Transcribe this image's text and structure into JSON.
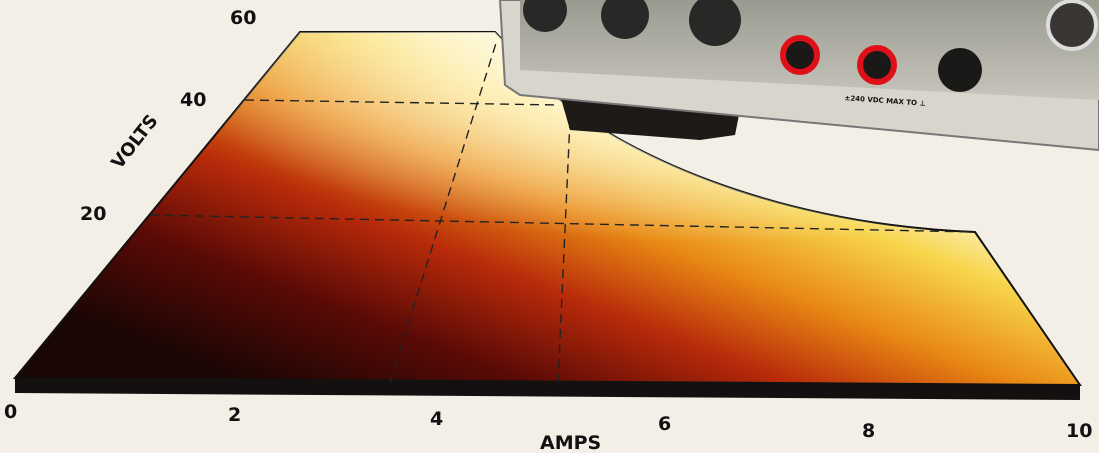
{
  "volts_axis": {
    "title": "VOLTS",
    "ticks": [
      20,
      40,
      60
    ]
  },
  "amps_axis": {
    "title": "AMPS",
    "ticks": [
      0,
      2,
      4,
      6,
      8,
      10
    ]
  },
  "instrument": {
    "panel_label": "±240 VDC MAX TO ⊥"
  }
}
